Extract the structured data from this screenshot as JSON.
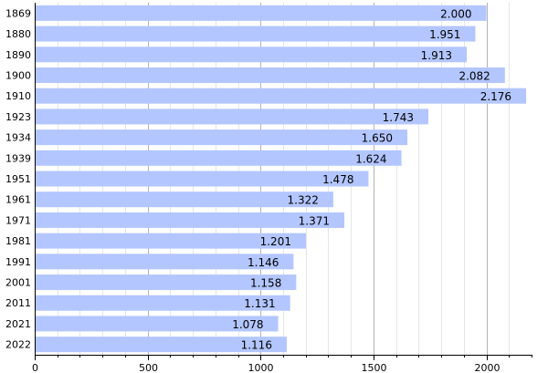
{
  "chart_data": {
    "type": "bar",
    "orientation": "horizontal",
    "categories": [
      "1869",
      "1880",
      "1890",
      "1900",
      "1910",
      "1923",
      "1934",
      "1939",
      "1951",
      "1961",
      "1971",
      "1981",
      "1991",
      "2001",
      "2011",
      "2021",
      "2022"
    ],
    "values": [
      2000,
      1951,
      1913,
      2082,
      2176,
      1743,
      1650,
      1624,
      1478,
      1322,
      1371,
      1201,
      1146,
      1158,
      1131,
      1078,
      1116
    ],
    "value_labels": [
      "2.000",
      "1.951",
      "1.913",
      "2.082",
      "2.176",
      "1.743",
      "1.650",
      "1.624",
      "1.478",
      "1.322",
      "1.371",
      "1.201",
      "1.146",
      "1.158",
      "1.131",
      "1.078",
      "1.116"
    ],
    "x_ticks": [
      0,
      500,
      1000,
      1500,
      2000
    ],
    "x_tick_labels": [
      "0",
      "500",
      "1000",
      "1500",
      "2000"
    ],
    "xlim": [
      0,
      2200
    ],
    "minor_step": 100,
    "grid": true,
    "bar_color": "#b3c6ff",
    "title": "",
    "xlabel": "",
    "ylabel": ""
  }
}
